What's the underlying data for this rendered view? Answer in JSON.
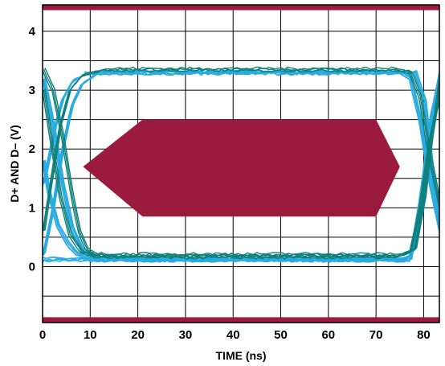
{
  "chart_data": {
    "type": "line",
    "title": "",
    "xlabel": "TIME (ns)",
    "ylabel": "D+ AND D– (V)",
    "xlim": [
      0,
      83.3
    ],
    "ylim": [
      -0.95,
      4.45
    ],
    "x_ticks": [
      0,
      10,
      20,
      30,
      40,
      50,
      60,
      70,
      80
    ],
    "y_ticks": [
      0,
      1,
      2,
      3,
      4
    ],
    "grid": true,
    "legend": "none",
    "colors": {
      "trace_light": "#29abe2",
      "trace_dark": "#0f7f7a",
      "mask": "#9b1b3f",
      "grid": "#000000"
    },
    "mask_regions": [
      {
        "name": "center-mask",
        "points": [
          [
            8.5,
            1.7
          ],
          [
            21,
            2.5
          ],
          [
            70,
            2.5
          ],
          [
            75,
            1.7
          ],
          [
            70,
            0.85
          ],
          [
            21,
            0.85
          ]
        ]
      },
      {
        "name": "top-mask",
        "points": [
          [
            0,
            4.45
          ],
          [
            83.3,
            4.45
          ],
          [
            83.3,
            4.36
          ],
          [
            0,
            4.36
          ]
        ]
      },
      {
        "name": "bottom-mask",
        "points": [
          [
            0,
            -0.86
          ],
          [
            83.3,
            -0.86
          ],
          [
            83.3,
            -0.95
          ],
          [
            0,
            -0.95
          ]
        ]
      }
    ],
    "series": [
      {
        "color": "light",
        "x": [
          0,
          0.8,
          3,
          6,
          9,
          12,
          70,
          74,
          77,
          79,
          81.5,
          83.3
        ],
        "values": [
          0.12,
          0.12,
          0.12,
          0.12,
          0.12,
          0.12,
          0.12,
          0.12,
          0.12,
          1.1,
          2.6,
          3.3
        ]
      },
      {
        "color": "light",
        "x": [
          0,
          1,
          2.5,
          4,
          6,
          9,
          12,
          74,
          76,
          78,
          80,
          81.5,
          83.3
        ],
        "values": [
          1.4,
          1.8,
          2.4,
          2.85,
          3.15,
          3.28,
          3.3,
          3.3,
          3.3,
          3.3,
          2.8,
          1.7,
          0.7
        ]
      },
      {
        "color": "light",
        "x": [
          0,
          1,
          3,
          5,
          7,
          10,
          13,
          73,
          76,
          78,
          80,
          81.5,
          83.3
        ],
        "values": [
          1.8,
          1.3,
          0.7,
          0.4,
          0.22,
          0.13,
          0.12,
          0.12,
          0.12,
          0.3,
          1.2,
          2.3,
          3.0
        ]
      },
      {
        "color": "light",
        "x": [
          0,
          2,
          4,
          6,
          8,
          11,
          14,
          72,
          75,
          77,
          79,
          81,
          83.3
        ],
        "values": [
          0.2,
          1.0,
          2.0,
          2.75,
          3.1,
          3.27,
          3.3,
          3.3,
          3.3,
          3.2,
          2.5,
          1.5,
          0.6
        ]
      },
      {
        "color": "light",
        "x": [
          0,
          2,
          4,
          6,
          8,
          11,
          14,
          72,
          75,
          77,
          79,
          81,
          83.3
        ],
        "values": [
          3.2,
          2.4,
          1.4,
          0.65,
          0.3,
          0.15,
          0.12,
          0.12,
          0.12,
          0.2,
          0.9,
          2.0,
          3.1
        ]
      },
      {
        "color": "dark",
        "x": [
          0,
          1.5,
          3.5,
          5.5,
          8,
          11,
          15,
          70,
          74,
          77,
          79,
          81,
          83.3
        ],
        "values": [
          0.6,
          1.4,
          2.4,
          3.0,
          3.25,
          3.32,
          3.35,
          3.35,
          3.35,
          3.3,
          2.9,
          1.9,
          1.0
        ]
      },
      {
        "color": "dark",
        "x": [
          0,
          1.5,
          3.5,
          5.5,
          8,
          11,
          15,
          70,
          74,
          77,
          79,
          81,
          83.3
        ],
        "values": [
          3.0,
          2.2,
          1.2,
          0.55,
          0.25,
          0.18,
          0.17,
          0.17,
          0.17,
          0.25,
          1.0,
          2.1,
          3.0
        ]
      },
      {
        "color": "dark",
        "x": [
          0,
          2,
          4,
          6,
          7.5,
          9,
          11,
          75,
          78,
          80,
          81.5,
          83.3
        ],
        "values": [
          3.35,
          3.0,
          2.2,
          1.2,
          0.6,
          0.3,
          0.2,
          0.2,
          0.3,
          1.2,
          2.2,
          3.2
        ]
      }
    ]
  }
}
